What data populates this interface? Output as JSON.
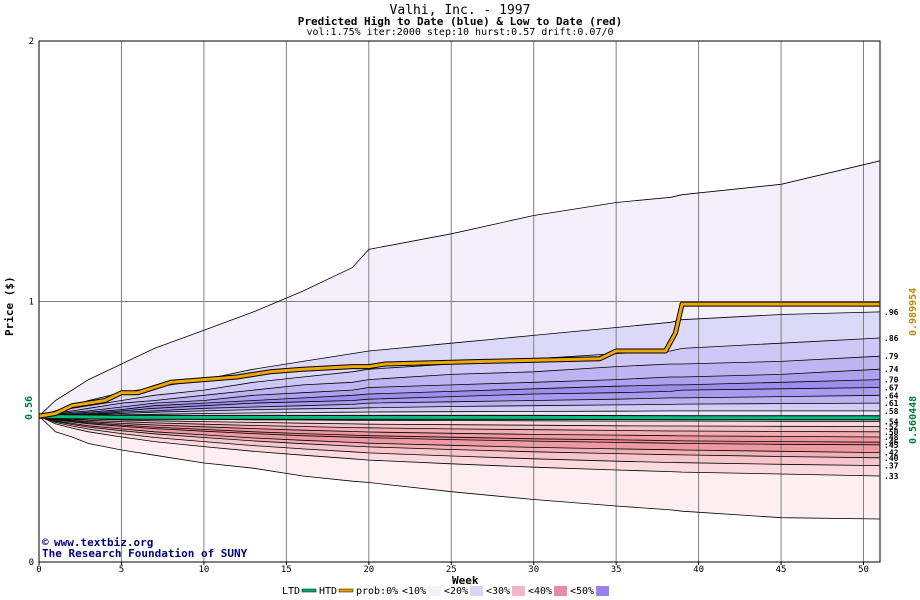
{
  "chart_data": {
    "type": "area",
    "title": "Valhi, Inc. - 1997",
    "subtitle": "Predicted High to Date (blue) &  Low to Date (red)",
    "params": "vol:1.75% iter:2000 step:10 hurst:0.57 drift:0.07/0",
    "xlabel": "Week",
    "ylabel": "Price ($)",
    "xlim": [
      0,
      51
    ],
    "ylim": [
      0,
      2
    ],
    "xticks": [
      "0",
      "5",
      "10",
      "15",
      "20",
      "25",
      "30",
      "35",
      "40",
      "45",
      "50"
    ],
    "yticks": [
      "0",
      "1",
      "2"
    ],
    "grid": true,
    "start_price": 0.56,
    "start_price_label": "0.56",
    "htd_final_label": "0.989954",
    "ltd_final_label": "0.560448",
    "htd_final": 0.989954,
    "ltd_final": 0.560448,
    "weeks": [
      0,
      1,
      2,
      3,
      5,
      7,
      10,
      13,
      16,
      19,
      20,
      25,
      30,
      35,
      38.3,
      39,
      45,
      51
    ],
    "high_quantiles": [
      {
        "label": "",
        "values": [
          0.56,
          0.62,
          0.66,
          0.7,
          0.76,
          0.82,
          0.89,
          0.96,
          1.04,
          1.13,
          1.2,
          1.26,
          1.33,
          1.38,
          1.4,
          1.41,
          1.45,
          1.54
        ]
      },
      {
        "label": ".96",
        "values": [
          0.56,
          0.58,
          0.6,
          0.62,
          0.65,
          0.67,
          0.7,
          0.74,
          0.77,
          0.8,
          0.81,
          0.84,
          0.87,
          0.9,
          0.92,
          0.93,
          0.95,
          0.96
        ]
      },
      {
        "label": ".86",
        "values": [
          0.56,
          0.575,
          0.59,
          0.6,
          0.62,
          0.64,
          0.66,
          0.69,
          0.71,
          0.73,
          0.74,
          0.76,
          0.78,
          0.8,
          0.81,
          0.82,
          0.84,
          0.86
        ]
      },
      {
        "label": ".79",
        "values": [
          0.56,
          0.57,
          0.58,
          0.59,
          0.61,
          0.62,
          0.64,
          0.66,
          0.68,
          0.69,
          0.7,
          0.72,
          0.73,
          0.75,
          0.76,
          0.76,
          0.77,
          0.79
        ]
      },
      {
        "label": ".74",
        "values": [
          0.56,
          0.567,
          0.575,
          0.58,
          0.595,
          0.61,
          0.62,
          0.64,
          0.65,
          0.66,
          0.67,
          0.68,
          0.69,
          0.7,
          0.71,
          0.71,
          0.72,
          0.74
        ]
      },
      {
        "label": ".70",
        "values": [
          0.56,
          0.565,
          0.57,
          0.575,
          0.585,
          0.6,
          0.61,
          0.62,
          0.63,
          0.64,
          0.645,
          0.655,
          0.665,
          0.675,
          0.68,
          0.68,
          0.69,
          0.7
        ]
      },
      {
        "label": ".67",
        "values": [
          0.56,
          0.563,
          0.567,
          0.57,
          0.58,
          0.59,
          0.6,
          0.61,
          0.615,
          0.62,
          0.625,
          0.635,
          0.645,
          0.65,
          0.655,
          0.66,
          0.665,
          0.67
        ]
      },
      {
        "label": ".64",
        "values": [
          0.56,
          0.562,
          0.565,
          0.567,
          0.575,
          0.58,
          0.59,
          0.595,
          0.6,
          0.605,
          0.61,
          0.615,
          0.62,
          0.625,
          0.63,
          0.63,
          0.635,
          0.64
        ]
      },
      {
        "label": ".61",
        "values": [
          0.56,
          0.561,
          0.563,
          0.565,
          0.57,
          0.575,
          0.58,
          0.585,
          0.588,
          0.59,
          0.592,
          0.597,
          0.6,
          0.603,
          0.605,
          0.606,
          0.608,
          0.61
        ]
      },
      {
        "label": ".58",
        "values": [
          0.56,
          0.561,
          0.562,
          0.563,
          0.565,
          0.567,
          0.57,
          0.572,
          0.574,
          0.575,
          0.576,
          0.577,
          0.578,
          0.579,
          0.58,
          0.58,
          0.58,
          0.58
        ]
      }
    ],
    "low_quantiles": [
      {
        "label": ".54",
        "values": [
          0.56,
          0.557,
          0.555,
          0.553,
          0.551,
          0.55,
          0.548,
          0.546,
          0.545,
          0.544,
          0.544,
          0.543,
          0.542,
          0.541,
          0.541,
          0.541,
          0.54,
          0.54
        ]
      },
      {
        "label": ".52",
        "values": [
          0.56,
          0.555,
          0.552,
          0.549,
          0.545,
          0.542,
          0.539,
          0.536,
          0.533,
          0.53,
          0.529,
          0.527,
          0.525,
          0.523,
          0.522,
          0.522,
          0.521,
          0.52
        ]
      },
      {
        "label": ".50",
        "values": [
          0.56,
          0.552,
          0.548,
          0.544,
          0.539,
          0.534,
          0.529,
          0.524,
          0.52,
          0.516,
          0.515,
          0.511,
          0.508,
          0.505,
          0.503,
          0.503,
          0.501,
          0.5
        ]
      },
      {
        "label": ".48",
        "values": [
          0.56,
          0.55,
          0.544,
          0.539,
          0.532,
          0.526,
          0.519,
          0.512,
          0.506,
          0.501,
          0.499,
          0.494,
          0.49,
          0.487,
          0.485,
          0.484,
          0.482,
          0.48
        ]
      },
      {
        "label": ".46",
        "values": [
          0.56,
          0.548,
          0.541,
          0.535,
          0.526,
          0.518,
          0.509,
          0.5,
          0.493,
          0.487,
          0.485,
          0.479,
          0.473,
          0.469,
          0.466,
          0.465,
          0.462,
          0.46
        ]
      },
      {
        "label": ".45",
        "values": [
          0.56,
          0.546,
          0.538,
          0.531,
          0.521,
          0.512,
          0.502,
          0.493,
          0.485,
          0.479,
          0.477,
          0.47,
          0.464,
          0.459,
          0.456,
          0.455,
          0.452,
          0.45
        ]
      },
      {
        "label": ".42",
        "values": [
          0.56,
          0.542,
          0.532,
          0.523,
          0.511,
          0.5,
          0.488,
          0.476,
          0.467,
          0.459,
          0.456,
          0.448,
          0.44,
          0.434,
          0.431,
          0.43,
          0.425,
          0.42
        ]
      },
      {
        "label": ".40",
        "values": [
          0.56,
          0.54,
          0.528,
          0.518,
          0.504,
          0.492,
          0.478,
          0.465,
          0.454,
          0.445,
          0.442,
          0.432,
          0.423,
          0.416,
          0.412,
          0.411,
          0.405,
          0.4
        ]
      },
      {
        "label": ".37",
        "values": [
          0.56,
          0.536,
          0.522,
          0.51,
          0.493,
          0.478,
          0.462,
          0.447,
          0.434,
          0.423,
          0.419,
          0.407,
          0.396,
          0.387,
          0.382,
          0.381,
          0.375,
          0.37
        ]
      },
      {
        "label": ".33",
        "values": [
          0.56,
          0.531,
          0.514,
          0.5,
          0.48,
          0.462,
          0.443,
          0.425,
          0.41,
          0.396,
          0.391,
          0.377,
          0.364,
          0.353,
          0.347,
          0.345,
          0.338,
          0.33
        ]
      },
      {
        "label": "",
        "values": [
          0.56,
          0.5,
          0.48,
          0.455,
          0.43,
          0.41,
          0.38,
          0.36,
          0.33,
          0.31,
          0.305,
          0.27,
          0.24,
          0.215,
          0.2,
          0.195,
          0.17,
          0.165
        ]
      }
    ],
    "htd_line": [
      [
        0,
        0.56
      ],
      [
        1,
        0.57
      ],
      [
        2,
        0.6
      ],
      [
        3,
        0.61
      ],
      [
        4,
        0.62
      ],
      [
        5,
        0.65
      ],
      [
        6,
        0.65
      ],
      [
        7,
        0.67
      ],
      [
        8,
        0.69
      ],
      [
        10,
        0.7
      ],
      [
        12,
        0.71
      ],
      [
        13,
        0.72
      ],
      [
        14,
        0.73
      ],
      [
        16,
        0.74
      ],
      [
        19,
        0.75
      ],
      [
        20,
        0.75
      ],
      [
        21,
        0.76
      ],
      [
        27,
        0.77
      ],
      [
        34,
        0.78
      ],
      [
        35,
        0.81
      ],
      [
        38,
        0.81
      ],
      [
        38.6,
        0.88
      ],
      [
        39,
        0.99
      ],
      [
        51,
        0.99
      ]
    ],
    "ltd_line": [
      [
        0,
        0.56
      ],
      [
        1,
        0.558
      ],
      [
        5,
        0.556
      ],
      [
        10,
        0.555
      ],
      [
        20,
        0.555
      ],
      [
        30,
        0.555
      ],
      [
        40,
        0.554
      ],
      [
        51,
        0.554
      ]
    ],
    "legend": [
      {
        "label": "LTD",
        "color": "#00b070",
        "kind": "line"
      },
      {
        "label": "HTD",
        "color": "#e8a000",
        "kind": "line"
      },
      {
        "label": "prob:0%",
        "color": "#ffffff",
        "kind": "text"
      },
      {
        "label": "<10%",
        "color": "#f4f0fc",
        "kind": "swatch"
      },
      {
        "label": "<20%",
        "color": "#dcd4f4",
        "kind": "swatch"
      },
      {
        "label": "<30%",
        "color": "#f4b4c4",
        "kind": "swatch"
      },
      {
        "label": "<40%",
        "color": "#e88ca4",
        "kind": "swatch"
      },
      {
        "label": "<50%",
        "color": "#9a80e8",
        "kind": "swatch"
      }
    ]
  },
  "watermark": {
    "line1": "www.textbiz.org",
    "line2": "The Research Foundation of SUNY"
  }
}
